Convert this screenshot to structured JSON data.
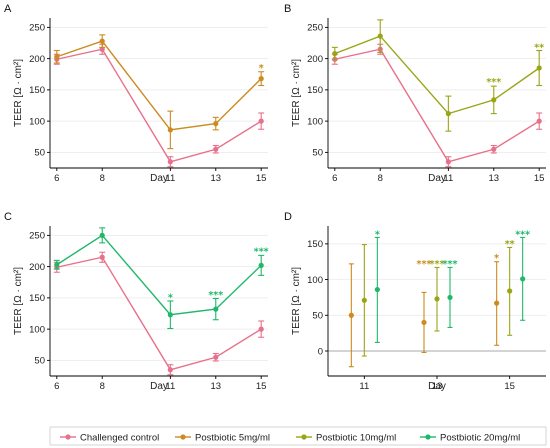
{
  "chart_data": [
    {
      "panel": "A",
      "type": "line",
      "x": [
        6,
        8,
        11,
        13,
        15
      ],
      "xlabel": "Day",
      "ylabel": "TEER [Ω · cm²]",
      "ylim": [
        25,
        265
      ],
      "yticks": [
        50,
        100,
        150,
        200,
        250
      ],
      "grid": true,
      "series": [
        {
          "name": "Challenged control",
          "color": "#e8708a",
          "values": [
            199,
            215,
            35,
            55,
            100
          ],
          "err": [
            8,
            8,
            8,
            6,
            13
          ]
        },
        {
          "name": "Postbiotic 5mg/ml",
          "color": "#cc8a1f",
          "values": [
            203,
            228,
            86,
            96,
            168
          ],
          "err": [
            10,
            10,
            30,
            10,
            11
          ]
        }
      ],
      "annotations": [
        {
          "x": 15,
          "y": 185,
          "text": "*",
          "color": "#cc8a1f"
        }
      ]
    },
    {
      "panel": "B",
      "type": "line",
      "x": [
        6,
        8,
        11,
        13,
        15
      ],
      "xlabel": "Day",
      "ylabel": "TEER [Ω · cm²]",
      "ylim": [
        25,
        265
      ],
      "yticks": [
        50,
        100,
        150,
        200,
        250
      ],
      "grid": true,
      "series": [
        {
          "name": "Challenged control",
          "color": "#e8708a",
          "values": [
            199,
            215,
            35,
            55,
            100
          ],
          "err": [
            8,
            8,
            8,
            6,
            13
          ]
        },
        {
          "name": "Postbiotic 10mg/ml",
          "color": "#9aa516",
          "values": [
            208,
            236,
            112,
            134,
            185
          ],
          "err": [
            10,
            26,
            28,
            22,
            28
          ]
        }
      ],
      "annotations": [
        {
          "x": 13,
          "y": 163,
          "text": "***",
          "color": "#9aa516"
        },
        {
          "x": 15,
          "y": 218,
          "text": "**",
          "color": "#9aa516"
        }
      ]
    },
    {
      "panel": "C",
      "type": "line",
      "x": [
        6,
        8,
        11,
        13,
        15
      ],
      "xlabel": "Day",
      "ylabel": "TEER [Ω · cm²]",
      "ylim": [
        25,
        265
      ],
      "yticks": [
        50,
        100,
        150,
        200,
        250
      ],
      "grid": true,
      "series": [
        {
          "name": "Challenged control",
          "color": "#e8708a",
          "values": [
            199,
            215,
            35,
            55,
            100
          ],
          "err": [
            8,
            8,
            8,
            6,
            13
          ]
        },
        {
          "name": "Postbiotic 20mg/ml",
          "color": "#1fb86a",
          "values": [
            203,
            250,
            123,
            132,
            202
          ],
          "err": [
            7,
            12,
            22,
            17,
            16
          ]
        }
      ],
      "annotations": [
        {
          "x": 11,
          "y": 151,
          "text": "*",
          "color": "#1fb86a"
        },
        {
          "x": 13,
          "y": 155,
          "text": "***",
          "color": "#1fb86a"
        },
        {
          "x": 15,
          "y": 224,
          "text": "***",
          "color": "#1fb86a"
        }
      ]
    },
    {
      "panel": "D",
      "type": "scatter",
      "categories": [
        "11",
        "13",
        "15"
      ],
      "xlabel": "Day",
      "ylabel": "TEER [Ω · cm²]",
      "ylim": [
        -35,
        175
      ],
      "yticks": [
        0,
        50,
        100,
        150
      ],
      "grid": true,
      "series": [
        {
          "name": "Postbiotic 5mg/ml",
          "color": "#cc8a1f",
          "values": [
            50,
            40,
            67
          ],
          "low": [
            -22,
            -2,
            8
          ],
          "high": [
            122,
            82,
            125
          ]
        },
        {
          "name": "Postbiotic 10mg/ml",
          "color": "#9aa516",
          "values": [
            71,
            73,
            84
          ],
          "low": [
            -7,
            28,
            22
          ],
          "high": [
            149,
            117,
            145
          ]
        },
        {
          "name": "Postbiotic 20mg/ml",
          "color": "#1fb86a",
          "values": [
            86,
            75,
            101
          ],
          "low": [
            12,
            33,
            43
          ],
          "high": [
            159,
            117,
            159
          ]
        }
      ],
      "annotations": [
        {
          "category": "11",
          "series": 2,
          "y": 163,
          "text": "*"
        },
        {
          "category": "13",
          "series": 0,
          "y": 122,
          "text": "***"
        },
        {
          "category": "13",
          "series": 1,
          "y": 122,
          "text": "***"
        },
        {
          "category": "13",
          "series": 2,
          "y": 122,
          "text": "***"
        },
        {
          "category": "15",
          "series": 0,
          "y": 130,
          "text": "*"
        },
        {
          "category": "15",
          "series": 1,
          "y": 150,
          "text": "**"
        },
        {
          "category": "15",
          "series": 2,
          "y": 163,
          "text": "***"
        }
      ]
    }
  ],
  "legend": {
    "placement": "bottom",
    "items": [
      {
        "label": "Challenged control",
        "color": "#e8708a"
      },
      {
        "label": "Postbiotic 5mg/ml",
        "color": "#cc8a1f"
      },
      {
        "label": "Postbiotic 10mg/ml",
        "color": "#9aa516"
      },
      {
        "label": "Postbiotic 20mg/ml",
        "color": "#1fb86a"
      }
    ]
  }
}
